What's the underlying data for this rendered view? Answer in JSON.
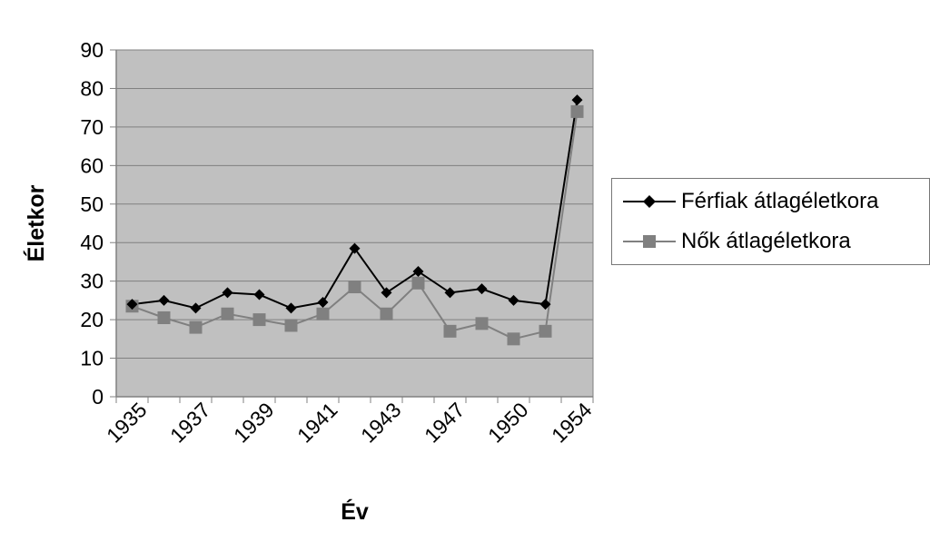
{
  "chart_data": {
    "type": "line",
    "title": "",
    "xlabel": "Év",
    "ylabel": "Életkor",
    "ylim": [
      0,
      90
    ],
    "yticks": [
      0,
      10,
      20,
      30,
      40,
      50,
      60,
      70,
      80,
      90
    ],
    "xtick_labels": [
      "1935",
      "1937",
      "1939",
      "1941",
      "1943",
      "1947",
      "1950",
      "1954"
    ],
    "grid": true,
    "legend_position": "right",
    "n_points": 15,
    "series": [
      {
        "name": "Férfiak átlagéletkora",
        "color": "#000000",
        "marker": "diamond",
        "values": [
          24,
          25,
          23,
          27,
          26.5,
          23,
          24.5,
          38.5,
          27,
          32.5,
          27,
          28,
          25,
          24,
          77
        ]
      },
      {
        "name": "Nők átlagéletkora",
        "color": "#808080",
        "marker": "square",
        "values": [
          23.5,
          20.5,
          18,
          21.5,
          20,
          18.5,
          21.5,
          28.5,
          21.5,
          29.5,
          17,
          19,
          15,
          17,
          74
        ]
      }
    ]
  }
}
